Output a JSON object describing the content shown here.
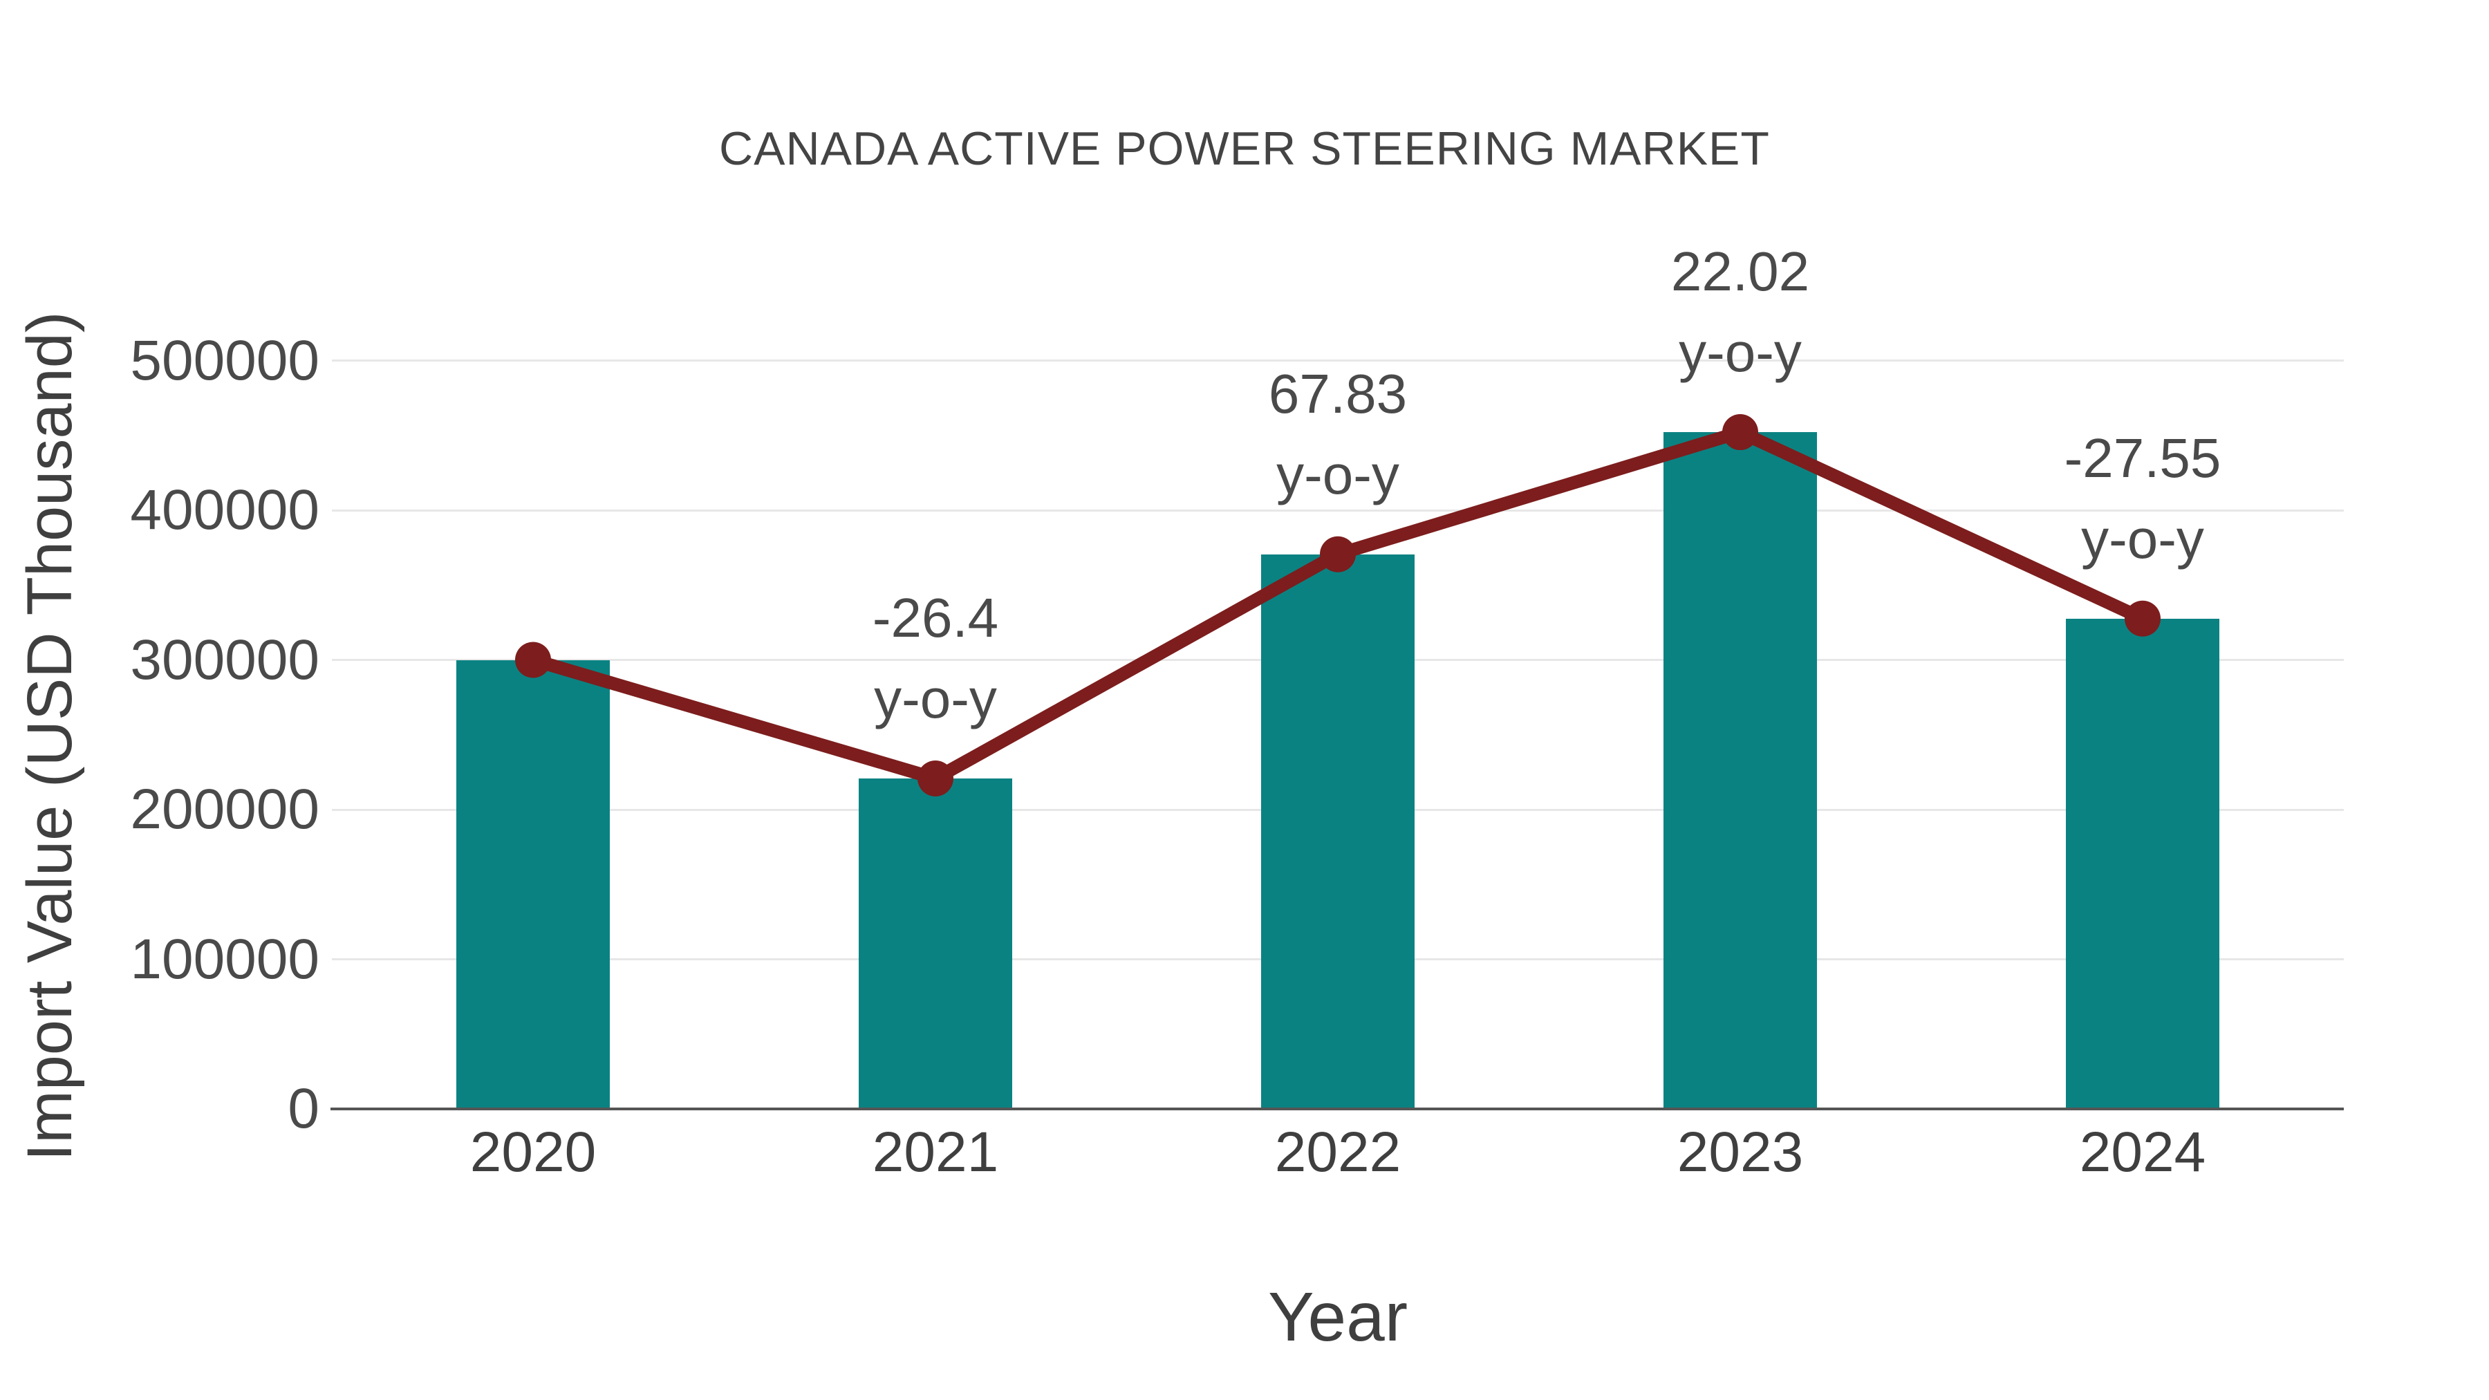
{
  "chart_data": {
    "type": "bar",
    "line_overlay": true,
    "title": "CANADA ACTIVE POWER STEERING MARKET",
    "xlabel": "Year",
    "ylabel": "Import Value (USD Thousand)",
    "categories": [
      "2020",
      "2021",
      "2022",
      "2023",
      "2024"
    ],
    "values": [
      300000,
      220800,
      370570,
      452170,
      327600
    ],
    "yoy_labels": [
      "",
      "-26.4",
      "67.83",
      "22.02",
      "-27.55"
    ],
    "yoy_suffix": "y-o-y",
    "yticks": [
      0,
      100000,
      200000,
      300000,
      400000,
      500000
    ],
    "ylim": [
      0,
      500000
    ],
    "grid": true,
    "legend": false,
    "bar_color": "#0B8282",
    "line_color": "#7D1D1D",
    "text_color": "#4a4a4a",
    "axis_color": "#555555",
    "grid_color": "#e7e7e7"
  }
}
